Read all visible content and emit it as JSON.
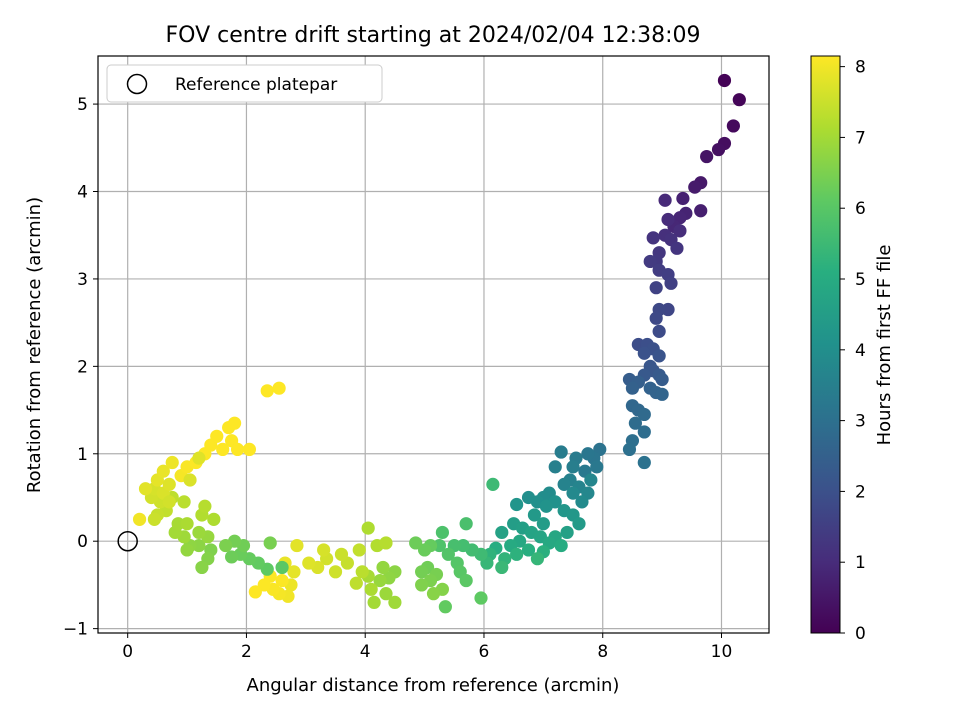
{
  "chart_data": {
    "type": "scatter",
    "title": "FOV centre drift starting at 2024/02/04 12:38:09",
    "xlabel": "Angular distance from reference (arcmin)",
    "ylabel": "Rotation from reference (arcmin)",
    "xlim": [
      -0.5,
      10.8
    ],
    "ylim": [
      -1.05,
      5.55
    ],
    "xticks": [
      0,
      2,
      4,
      6,
      8,
      10
    ],
    "yticks": [
      -1,
      0,
      1,
      2,
      3,
      4,
      5
    ],
    "grid": true,
    "legend": {
      "position": "top-left",
      "entries": [
        {
          "label": "Reference platepar",
          "marker": "open-circle"
        }
      ]
    },
    "reference_point": {
      "x": 0,
      "y": 0
    },
    "colorbar": {
      "label": "Hours from first FF file",
      "range": [
        0,
        8.15
      ],
      "ticks": [
        0,
        1,
        2,
        3,
        4,
        5,
        6,
        7,
        8
      ],
      "colormap": "viridis"
    },
    "points": [
      {
        "x": 10.05,
        "y": 5.27,
        "t": 0.05
      },
      {
        "x": 10.3,
        "y": 5.05,
        "t": 0.1
      },
      {
        "x": 10.2,
        "y": 4.75,
        "t": 0.2
      },
      {
        "x": 10.05,
        "y": 4.55,
        "t": 0.3
      },
      {
        "x": 9.95,
        "y": 4.48,
        "t": 0.35
      },
      {
        "x": 9.75,
        "y": 4.4,
        "t": 0.45
      },
      {
        "x": 9.65,
        "y": 4.1,
        "t": 0.55
      },
      {
        "x": 9.55,
        "y": 4.05,
        "t": 0.6
      },
      {
        "x": 9.65,
        "y": 3.78,
        "t": 0.7
      },
      {
        "x": 9.35,
        "y": 3.92,
        "t": 0.75
      },
      {
        "x": 9.4,
        "y": 3.75,
        "t": 0.8
      },
      {
        "x": 9.3,
        "y": 3.7,
        "t": 0.85
      },
      {
        "x": 9.2,
        "y": 3.6,
        "t": 0.9
      },
      {
        "x": 9.05,
        "y": 3.9,
        "t": 0.95
      },
      {
        "x": 9.1,
        "y": 3.68,
        "t": 1.0
      },
      {
        "x": 9.3,
        "y": 3.55,
        "t": 1.05
      },
      {
        "x": 9.05,
        "y": 3.5,
        "t": 1.1
      },
      {
        "x": 9.15,
        "y": 3.45,
        "t": 1.15
      },
      {
        "x": 8.85,
        "y": 3.47,
        "t": 1.2
      },
      {
        "x": 9.25,
        "y": 3.35,
        "t": 1.25
      },
      {
        "x": 8.95,
        "y": 3.3,
        "t": 1.3
      },
      {
        "x": 8.9,
        "y": 3.2,
        "t": 1.35
      },
      {
        "x": 8.8,
        "y": 3.2,
        "t": 1.4
      },
      {
        "x": 8.95,
        "y": 3.1,
        "t": 1.45
      },
      {
        "x": 9.1,
        "y": 3.05,
        "t": 1.5
      },
      {
        "x": 9.15,
        "y": 2.95,
        "t": 1.55
      },
      {
        "x": 8.9,
        "y": 2.9,
        "t": 1.6
      },
      {
        "x": 9.1,
        "y": 2.65,
        "t": 1.7
      },
      {
        "x": 8.95,
        "y": 2.65,
        "t": 1.75
      },
      {
        "x": 8.9,
        "y": 2.55,
        "t": 1.8
      },
      {
        "x": 8.95,
        "y": 2.4,
        "t": 1.85
      },
      {
        "x": 8.6,
        "y": 2.25,
        "t": 1.9
      },
      {
        "x": 8.75,
        "y": 2.25,
        "t": 1.95
      },
      {
        "x": 8.85,
        "y": 2.2,
        "t": 2.0
      },
      {
        "x": 8.7,
        "y": 2.15,
        "t": 2.05
      },
      {
        "x": 8.95,
        "y": 2.12,
        "t": 2.1
      },
      {
        "x": 8.8,
        "y": 2.0,
        "t": 2.15
      },
      {
        "x": 8.85,
        "y": 1.95,
        "t": 2.2
      },
      {
        "x": 8.7,
        "y": 1.9,
        "t": 2.25
      },
      {
        "x": 8.95,
        "y": 1.9,
        "t": 2.3
      },
      {
        "x": 9.0,
        "y": 1.85,
        "t": 2.35
      },
      {
        "x": 8.45,
        "y": 1.85,
        "t": 2.4
      },
      {
        "x": 8.6,
        "y": 1.82,
        "t": 2.45
      },
      {
        "x": 8.5,
        "y": 1.75,
        "t": 2.5
      },
      {
        "x": 8.8,
        "y": 1.75,
        "t": 2.55
      },
      {
        "x": 8.9,
        "y": 1.7,
        "t": 2.6
      },
      {
        "x": 9.0,
        "y": 1.68,
        "t": 2.65
      },
      {
        "x": 8.5,
        "y": 1.55,
        "t": 2.7
      },
      {
        "x": 8.6,
        "y": 1.5,
        "t": 2.75
      },
      {
        "x": 8.7,
        "y": 1.45,
        "t": 2.8
      },
      {
        "x": 8.55,
        "y": 1.35,
        "t": 2.85
      },
      {
        "x": 8.7,
        "y": 1.25,
        "t": 2.9
      },
      {
        "x": 8.5,
        "y": 1.15,
        "t": 2.95
      },
      {
        "x": 8.45,
        "y": 1.05,
        "t": 3.0
      },
      {
        "x": 8.7,
        "y": 0.9,
        "t": 3.05
      },
      {
        "x": 7.95,
        "y": 1.05,
        "t": 3.1
      },
      {
        "x": 7.85,
        "y": 0.95,
        "t": 3.15
      },
      {
        "x": 7.75,
        "y": 1.0,
        "t": 3.2
      },
      {
        "x": 7.9,
        "y": 0.85,
        "t": 3.25
      },
      {
        "x": 7.7,
        "y": 0.8,
        "t": 3.3
      },
      {
        "x": 7.55,
        "y": 0.95,
        "t": 3.35
      },
      {
        "x": 7.3,
        "y": 1.02,
        "t": 3.4
      },
      {
        "x": 7.5,
        "y": 0.85,
        "t": 3.45
      },
      {
        "x": 7.2,
        "y": 0.85,
        "t": 3.5
      },
      {
        "x": 7.45,
        "y": 0.7,
        "t": 3.55
      },
      {
        "x": 7.35,
        "y": 0.65,
        "t": 3.6
      },
      {
        "x": 7.6,
        "y": 0.62,
        "t": 3.65
      },
      {
        "x": 7.8,
        "y": 0.7,
        "t": 3.7
      },
      {
        "x": 7.75,
        "y": 0.55,
        "t": 3.75
      },
      {
        "x": 7.5,
        "y": 0.55,
        "t": 3.8
      },
      {
        "x": 7.65,
        "y": 0.45,
        "t": 3.85
      },
      {
        "x": 7.1,
        "y": 0.55,
        "t": 3.9
      },
      {
        "x": 7.0,
        "y": 0.5,
        "t": 3.95
      },
      {
        "x": 6.75,
        "y": 0.5,
        "t": 4.0
      },
      {
        "x": 6.9,
        "y": 0.45,
        "t": 4.05
      },
      {
        "x": 7.2,
        "y": 0.45,
        "t": 4.1
      },
      {
        "x": 7.05,
        "y": 0.4,
        "t": 4.15
      },
      {
        "x": 6.55,
        "y": 0.42,
        "t": 4.2
      },
      {
        "x": 7.35,
        "y": 0.35,
        "t": 4.25
      },
      {
        "x": 7.5,
        "y": 0.3,
        "t": 4.3
      },
      {
        "x": 6.85,
        "y": 0.3,
        "t": 4.35
      },
      {
        "x": 7.6,
        "y": 0.2,
        "t": 4.4
      },
      {
        "x": 7.0,
        "y": 0.2,
        "t": 4.45
      },
      {
        "x": 6.5,
        "y": 0.2,
        "t": 4.5
      },
      {
        "x": 6.65,
        "y": 0.15,
        "t": 4.55
      },
      {
        "x": 7.4,
        "y": 0.1,
        "t": 4.6
      },
      {
        "x": 6.3,
        "y": 0.1,
        "t": 4.65
      },
      {
        "x": 6.8,
        "y": 0.1,
        "t": 4.7
      },
      {
        "x": 6.95,
        "y": 0.05,
        "t": 4.75
      },
      {
        "x": 7.2,
        "y": 0.05,
        "t": 4.8
      },
      {
        "x": 6.6,
        "y": 0.0,
        "t": 4.85
      },
      {
        "x": 7.1,
        "y": -0.02,
        "t": 4.9
      },
      {
        "x": 6.45,
        "y": -0.05,
        "t": 4.95
      },
      {
        "x": 7.3,
        "y": -0.05,
        "t": 5.0
      },
      {
        "x": 6.2,
        "y": -0.08,
        "t": 5.05
      },
      {
        "x": 6.75,
        "y": -0.1,
        "t": 5.1
      },
      {
        "x": 7.0,
        "y": -0.12,
        "t": 5.15
      },
      {
        "x": 6.55,
        "y": -0.15,
        "t": 5.2
      },
      {
        "x": 6.1,
        "y": -0.15,
        "t": 5.25
      },
      {
        "x": 6.35,
        "y": -0.2,
        "t": 5.3
      },
      {
        "x": 6.9,
        "y": -0.2,
        "t": 5.35
      },
      {
        "x": 6.05,
        "y": -0.25,
        "t": 5.4
      },
      {
        "x": 6.3,
        "y": -0.3,
        "t": 5.45
      },
      {
        "x": 6.15,
        "y": 0.65,
        "t": 5.5
      },
      {
        "x": 5.95,
        "y": -0.15,
        "t": 5.55
      },
      {
        "x": 5.8,
        "y": -0.1,
        "t": 5.6
      },
      {
        "x": 5.65,
        "y": -0.05,
        "t": 5.65
      },
      {
        "x": 5.5,
        "y": -0.05,
        "t": 5.7
      },
      {
        "x": 5.7,
        "y": 0.2,
        "t": 5.75
      },
      {
        "x": 5.3,
        "y": 0.1,
        "t": 5.8
      },
      {
        "x": 5.25,
        "y": -0.05,
        "t": 5.85
      },
      {
        "x": 5.4,
        "y": -0.15,
        "t": 5.9
      },
      {
        "x": 5.55,
        "y": -0.25,
        "t": 5.95
      },
      {
        "x": 5.6,
        "y": -0.35,
        "t": 6.0
      },
      {
        "x": 5.7,
        "y": -0.45,
        "t": 6.05
      },
      {
        "x": 5.95,
        "y": -0.65,
        "t": 6.1
      },
      {
        "x": 5.35,
        "y": -0.75,
        "t": 6.15
      },
      {
        "x": 5.1,
        "y": -0.05,
        "t": 6.2
      },
      {
        "x": 5.0,
        "y": -0.1,
        "t": 6.25
      },
      {
        "x": 4.85,
        "y": -0.02,
        "t": 6.3
      },
      {
        "x": 5.05,
        "y": -0.3,
        "t": 6.35
      },
      {
        "x": 4.95,
        "y": -0.35,
        "t": 6.4
      },
      {
        "x": 5.2,
        "y": -0.38,
        "t": 6.45
      },
      {
        "x": 5.1,
        "y": -0.45,
        "t": 6.5
      },
      {
        "x": 4.95,
        "y": -0.5,
        "t": 6.55
      },
      {
        "x": 5.3,
        "y": -0.55,
        "t": 6.6
      },
      {
        "x": 5.15,
        "y": -0.6,
        "t": 6.65
      },
      {
        "x": 4.5,
        "y": -0.35,
        "t": 6.7
      },
      {
        "x": 4.4,
        "y": -0.42,
        "t": 6.75
      },
      {
        "x": 4.3,
        "y": -0.3,
        "t": 6.8
      },
      {
        "x": 4.25,
        "y": -0.45,
        "t": 6.85
      },
      {
        "x": 4.35,
        "y": -0.6,
        "t": 6.9
      },
      {
        "x": 4.5,
        "y": -0.7,
        "t": 6.95
      },
      {
        "x": 4.15,
        "y": -0.7,
        "t": 7.0
      },
      {
        "x": 4.05,
        "y": -0.4,
        "t": 7.05
      },
      {
        "x": 4.1,
        "y": -0.55,
        "t": 7.1
      },
      {
        "x": 4.05,
        "y": 0.15,
        "t": 7.15
      },
      {
        "x": 4.2,
        "y": -0.05,
        "t": 7.2
      },
      {
        "x": 4.35,
        "y": -0.02,
        "t": 7.25
      },
      {
        "x": 3.95,
        "y": -0.35,
        "t": 7.3
      },
      {
        "x": 3.85,
        "y": -0.48,
        "t": 7.35
      },
      {
        "x": 3.9,
        "y": -0.1,
        "t": 7.4
      },
      {
        "x": 3.7,
        "y": -0.25,
        "t": 7.45
      },
      {
        "x": 3.6,
        "y": -0.15,
        "t": 7.5
      },
      {
        "x": 3.5,
        "y": -0.35,
        "t": 7.55
      },
      {
        "x": 3.35,
        "y": -0.2,
        "t": 7.6
      },
      {
        "x": 3.3,
        "y": -0.1,
        "t": 7.65
      },
      {
        "x": 3.2,
        "y": -0.3,
        "t": 7.7
      },
      {
        "x": 3.05,
        "y": -0.25,
        "t": 7.75
      },
      {
        "x": 2.85,
        "y": -0.05,
        "t": 7.8
      },
      {
        "x": 2.8,
        "y": -0.35,
        "t": 7.85
      },
      {
        "x": 2.65,
        "y": -0.25,
        "t": 7.9
      },
      {
        "x": 2.75,
        "y": -0.5,
        "t": 7.95
      },
      {
        "x": 2.7,
        "y": -0.63,
        "t": 8.0
      },
      {
        "x": 2.55,
        "y": -0.6,
        "t": 8.05
      },
      {
        "x": 2.45,
        "y": -0.55,
        "t": 8.1
      },
      {
        "x": 2.6,
        "y": -0.45,
        "t": 8.12
      },
      {
        "x": 2.4,
        "y": -0.4,
        "t": 8.13
      },
      {
        "x": 2.3,
        "y": -0.5,
        "t": 8.14
      },
      {
        "x": 2.15,
        "y": -0.58,
        "t": 8.15
      },
      {
        "x": 2.6,
        "y": -0.3,
        "t": 6.05
      },
      {
        "x": 2.35,
        "y": -0.32,
        "t": 6.1
      },
      {
        "x": 2.2,
        "y": -0.25,
        "t": 6.15
      },
      {
        "x": 2.05,
        "y": -0.2,
        "t": 6.2
      },
      {
        "x": 1.9,
        "y": -0.15,
        "t": 6.25
      },
      {
        "x": 1.75,
        "y": -0.18,
        "t": 6.3
      },
      {
        "x": 1.95,
        "y": -0.05,
        "t": 6.35
      },
      {
        "x": 1.8,
        "y": 0.0,
        "t": 6.4
      },
      {
        "x": 2.4,
        "y": -0.02,
        "t": 6.45
      },
      {
        "x": 1.65,
        "y": -0.05,
        "t": 6.5
      },
      {
        "x": 1.4,
        "y": -0.1,
        "t": 6.55
      },
      {
        "x": 1.35,
        "y": -0.2,
        "t": 6.6
      },
      {
        "x": 1.25,
        "y": -0.3,
        "t": 6.65
      },
      {
        "x": 1.2,
        "y": -0.05,
        "t": 6.7
      },
      {
        "x": 1.05,
        "y": -0.05,
        "t": 6.75
      },
      {
        "x": 1.0,
        "y": -0.1,
        "t": 6.8
      },
      {
        "x": 1.35,
        "y": 0.05,
        "t": 6.85
      },
      {
        "x": 1.2,
        "y": 0.1,
        "t": 6.9
      },
      {
        "x": 0.95,
        "y": 0.05,
        "t": 6.95
      },
      {
        "x": 0.8,
        "y": 0.1,
        "t": 7.0
      },
      {
        "x": 0.85,
        "y": 0.2,
        "t": 7.05
      },
      {
        "x": 1.0,
        "y": 0.2,
        "t": 7.1
      },
      {
        "x": 1.45,
        "y": 0.25,
        "t": 7.15
      },
      {
        "x": 1.25,
        "y": 0.3,
        "t": 7.2
      },
      {
        "x": 1.3,
        "y": 0.4,
        "t": 7.25
      },
      {
        "x": 0.95,
        "y": 0.45,
        "t": 7.3
      },
      {
        "x": 0.75,
        "y": 0.5,
        "t": 7.35
      },
      {
        "x": 0.65,
        "y": 0.35,
        "t": 7.4
      },
      {
        "x": 0.5,
        "y": 0.3,
        "t": 7.45
      },
      {
        "x": 0.45,
        "y": 0.25,
        "t": 7.5
      },
      {
        "x": 0.55,
        "y": 0.45,
        "t": 7.55
      },
      {
        "x": 0.4,
        "y": 0.5,
        "t": 7.6
      },
      {
        "x": 0.45,
        "y": 0.6,
        "t": 7.65
      },
      {
        "x": 0.6,
        "y": 0.55,
        "t": 7.7
      },
      {
        "x": 0.7,
        "y": 0.65,
        "t": 7.75
      },
      {
        "x": 0.3,
        "y": 0.6,
        "t": 7.8
      },
      {
        "x": 0.5,
        "y": 0.7,
        "t": 7.85
      },
      {
        "x": 0.6,
        "y": 0.8,
        "t": 7.9
      },
      {
        "x": 0.75,
        "y": 0.9,
        "t": 7.95
      },
      {
        "x": 0.2,
        "y": 0.25,
        "t": 8.0
      },
      {
        "x": 0.9,
        "y": 0.75,
        "t": 8.05
      },
      {
        "x": 1.0,
        "y": 0.85,
        "t": 8.1
      },
      {
        "x": 1.15,
        "y": 0.9,
        "t": 8.12
      },
      {
        "x": 1.3,
        "y": 1.0,
        "t": 8.14
      },
      {
        "x": 1.4,
        "y": 1.1,
        "t": 8.15
      },
      {
        "x": 1.6,
        "y": 1.05,
        "t": 8.15
      },
      {
        "x": 1.75,
        "y": 1.15,
        "t": 8.15
      },
      {
        "x": 1.85,
        "y": 1.05,
        "t": 8.15
      },
      {
        "x": 2.05,
        "y": 1.05,
        "t": 8.15
      },
      {
        "x": 1.7,
        "y": 1.3,
        "t": 8.15
      },
      {
        "x": 1.8,
        "y": 1.35,
        "t": 8.15
      },
      {
        "x": 2.35,
        "y": 1.72,
        "t": 8.15
      },
      {
        "x": 2.55,
        "y": 1.75,
        "t": 8.15
      },
      {
        "x": 1.5,
        "y": 1.2,
        "t": 8.15
      },
      {
        "x": 1.2,
        "y": 0.95,
        "t": 7.75
      },
      {
        "x": 1.05,
        "y": 0.7,
        "t": 7.7
      },
      {
        "x": 0.7,
        "y": 0.45,
        "t": 7.6
      }
    ]
  }
}
